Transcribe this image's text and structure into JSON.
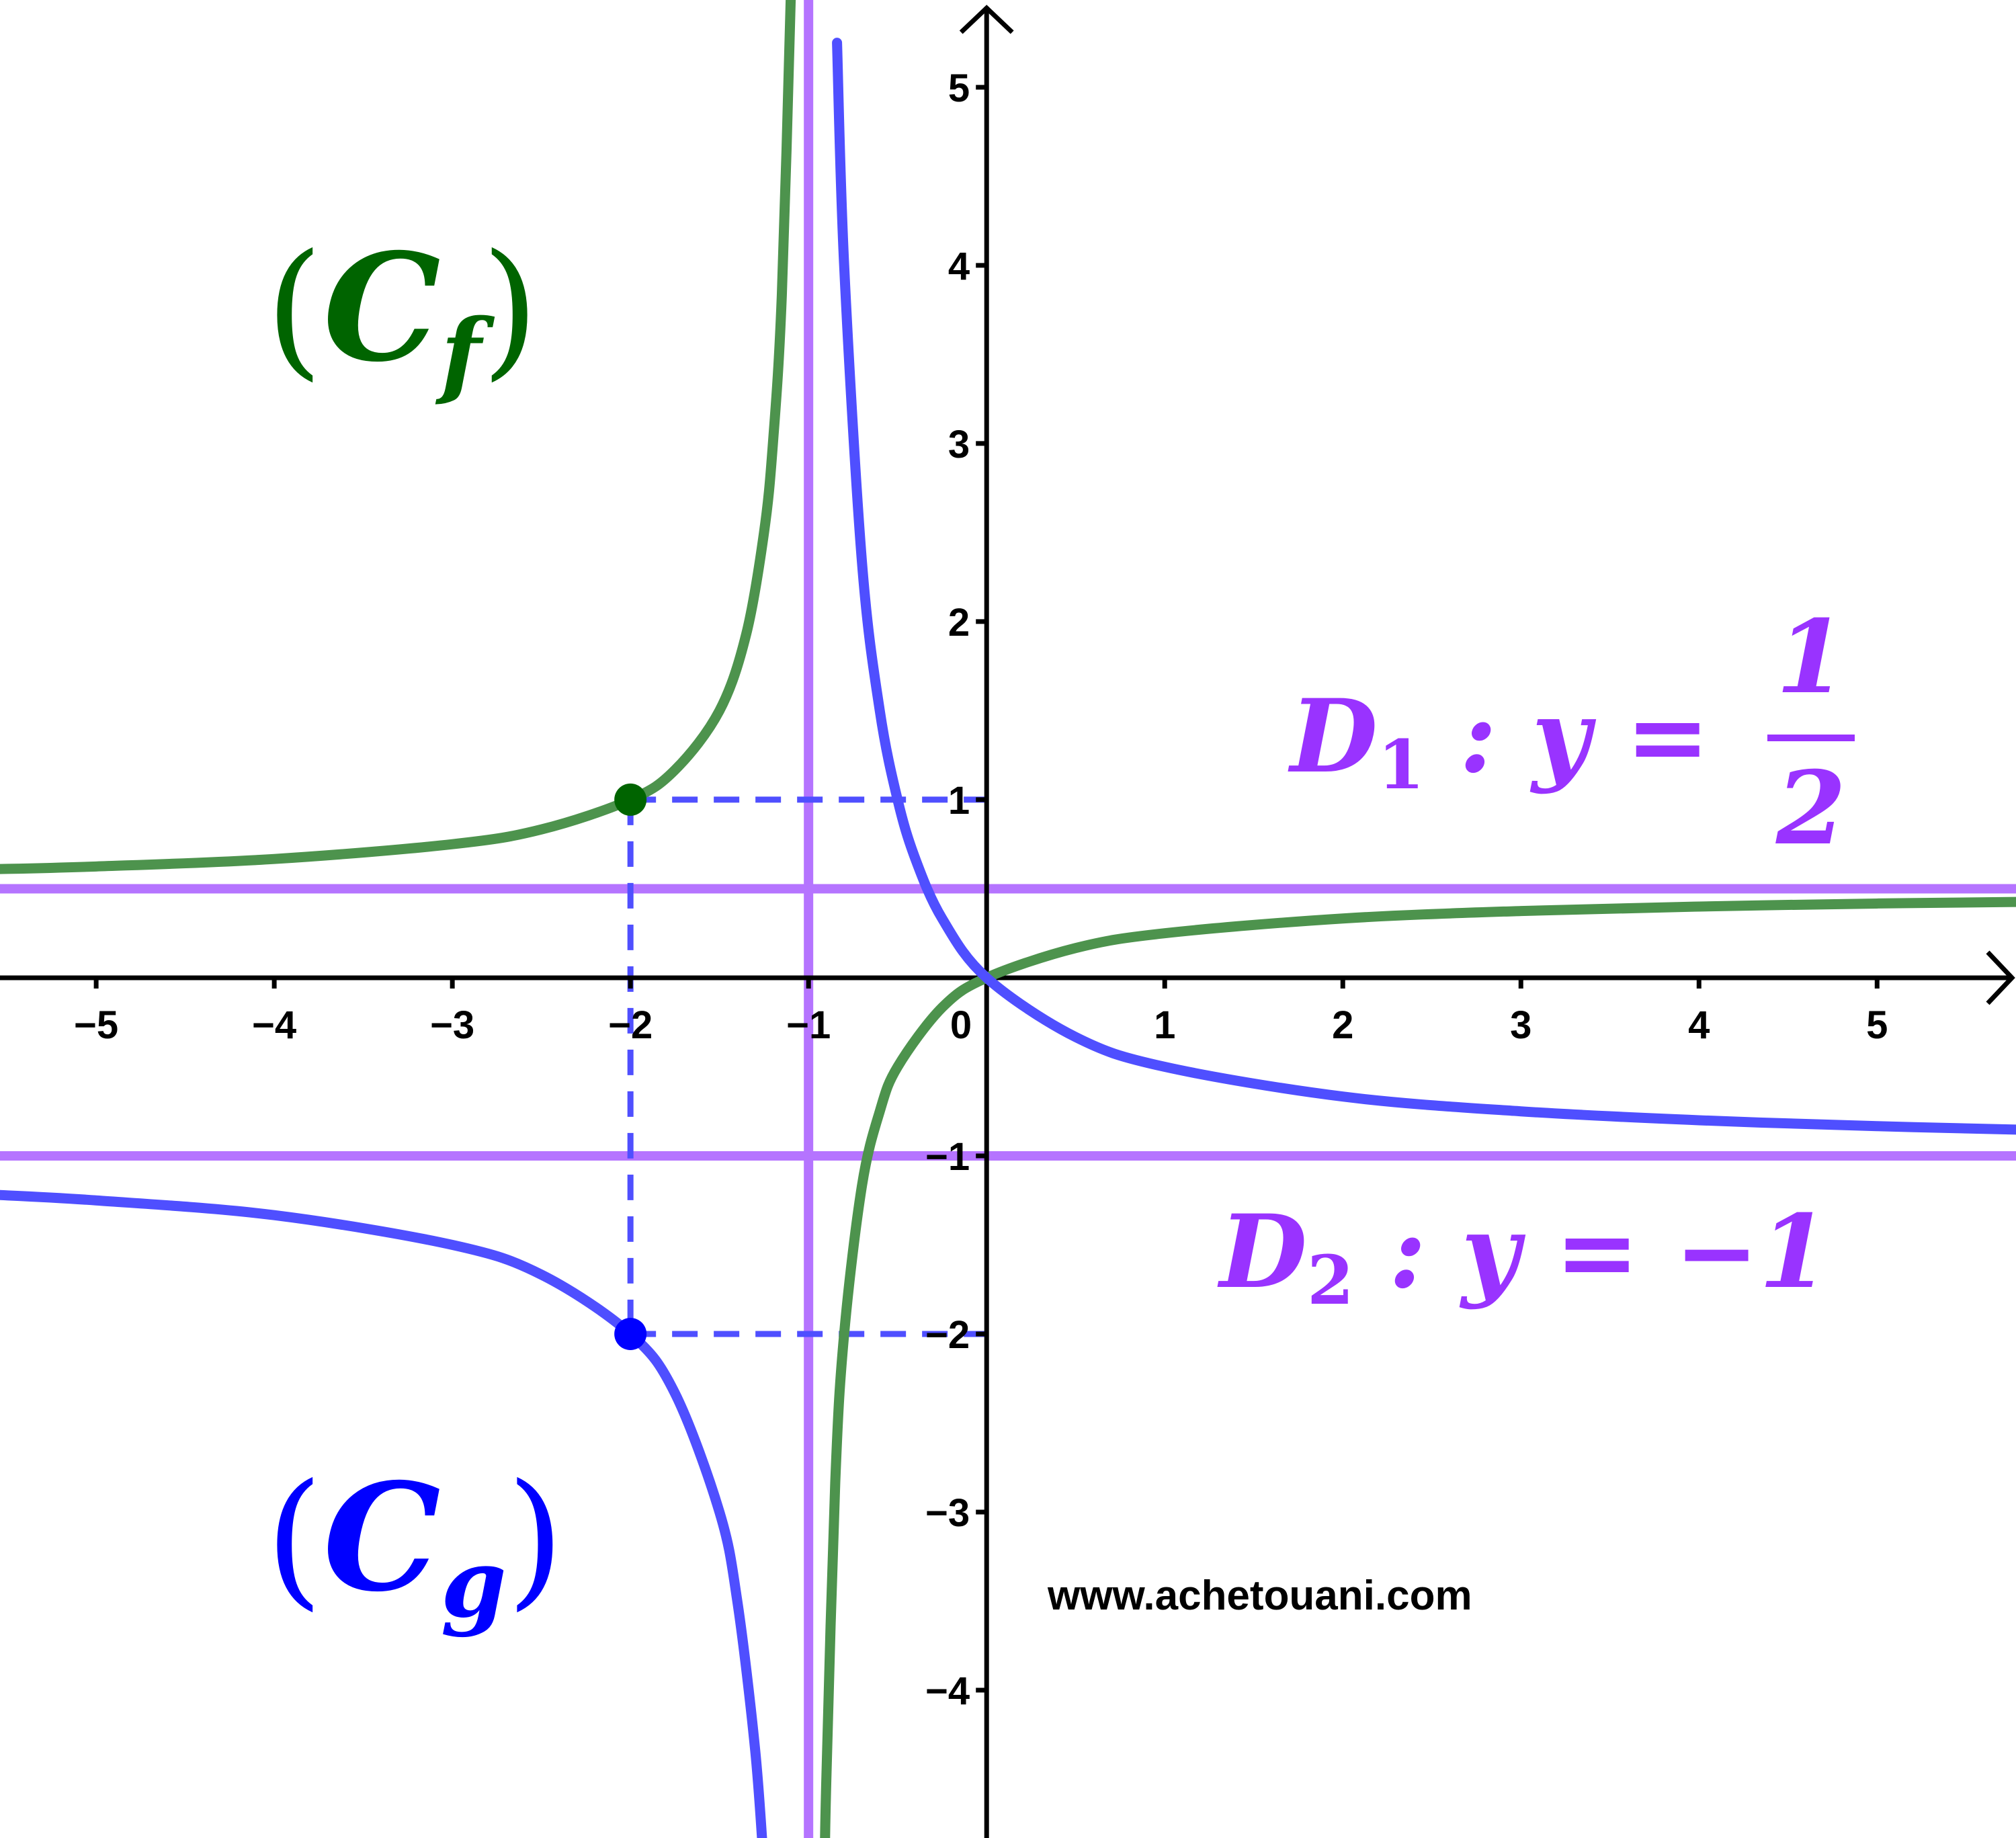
{
  "chart_data": {
    "type": "line",
    "title": "",
    "xlabel": "",
    "ylabel": "",
    "xlim": [
      -5.54,
      5.78
    ],
    "ylim": [
      -4.83,
      5.49
    ],
    "grid": false,
    "x_ticks": [
      "−5",
      "−4",
      "−3",
      "−2",
      "−1",
      "1",
      "2",
      "3",
      "4",
      "5"
    ],
    "x_tick_values": [
      -5,
      -4,
      -3,
      -2,
      -1,
      1,
      2,
      3,
      4,
      5
    ],
    "y_ticks": [
      "5",
      "4",
      "3",
      "2",
      "1",
      "−1",
      "−2",
      "−3",
      "−4"
    ],
    "y_tick_values": [
      5,
      4,
      3,
      2,
      1,
      -1,
      -2,
      -3,
      -4
    ],
    "origin_label": "0",
    "colors": {
      "f_curve": "#4d934d",
      "g_curve": "#4f4fff",
      "asymptote": "#b574ff",
      "f_point": "#006400",
      "g_point": "#0000ff",
      "f_label": "#006400",
      "g_label": "#0000ff",
      "d_label": "#9933ff",
      "dashed": "#4f4fff",
      "axis": "#000000"
    },
    "series": [
      {
        "name": "(C_f)",
        "color": "#4d934d",
        "branches": [
          [
            [
              -5.6,
              0.609
            ],
            [
              -5,
              0.625
            ],
            [
              -4,
              0.667
            ],
            [
              -3,
              0.75
            ],
            [
              -2.5,
              0.833
            ],
            [
              -2,
              1
            ],
            [
              -1.75,
              1.167
            ],
            [
              -1.5,
              1.5
            ],
            [
              -1.35,
              1.929
            ],
            [
              -1.25,
              2.5
            ],
            [
              -1.2,
              3
            ],
            [
              -1.15,
              3.833
            ],
            [
              -1.1,
              5.5
            ],
            [
              -1.09,
              6.06
            ]
          ],
          [
            [
              -0.91,
              -5.06
            ],
            [
              -0.9,
              -4.5
            ],
            [
              -0.85,
              -2.833
            ],
            [
              -0.8,
              -2
            ],
            [
              -0.7,
              -1.167
            ],
            [
              -0.6,
              -0.75
            ],
            [
              -0.5,
              -0.5
            ],
            [
              -0.25,
              -0.167
            ],
            [
              0,
              0
            ],
            [
              0.5,
              0.167
            ],
            [
              1,
              0.25
            ],
            [
              2,
              0.333
            ],
            [
              3,
              0.375
            ],
            [
              4,
              0.4
            ],
            [
              5,
              0.417
            ],
            [
              5.8,
              0.426
            ]
          ]
        ]
      },
      {
        "name": "(C_g)",
        "color": "#4f4fff",
        "branches": [
          [
            [
              -5.6,
              -1.217
            ],
            [
              -5,
              -1.25
            ],
            [
              -4,
              -1.333
            ],
            [
              -3,
              -1.5
            ],
            [
              -2.5,
              -1.667
            ],
            [
              -2,
              -2
            ],
            [
              -1.75,
              -2.333
            ],
            [
              -1.5,
              -3
            ],
            [
              -1.4,
              -3.5
            ],
            [
              -1.3,
              -4.333
            ],
            [
              -1.25,
              -5
            ]
          ],
          [
            [
              -0.84,
              5.25
            ],
            [
              -0.8,
              4
            ],
            [
              -0.7,
              2.333
            ],
            [
              -0.6,
              1.5
            ],
            [
              -0.5,
              1
            ],
            [
              -0.4,
              0.667
            ],
            [
              -0.25,
              0.333
            ],
            [
              0,
              0
            ],
            [
              0.5,
              -0.333
            ],
            [
              1,
              -0.5
            ],
            [
              2,
              -0.667
            ],
            [
              3,
              -0.75
            ],
            [
              4,
              -0.8
            ],
            [
              5,
              -0.833
            ],
            [
              5.8,
              -0.853
            ]
          ]
        ]
      }
    ],
    "asymptotes": {
      "vertical_x": -1,
      "horizontal_y": [
        0.5,
        -1
      ]
    },
    "points": [
      {
        "x": -2,
        "y": 1,
        "color": "#006400"
      },
      {
        "x": -2,
        "y": -2,
        "color": "#0000ff"
      }
    ],
    "labels": {
      "cf": {
        "open": "(",
        "main": "C",
        "sub": "f",
        "close": ")"
      },
      "cg": {
        "open": "(",
        "main": "C",
        "sub": "g",
        "close": ")"
      },
      "d1": {
        "main": "D",
        "sub": "1",
        "rest": " : y = ",
        "num": "1",
        "den": "2"
      },
      "d2": {
        "main": "D",
        "sub": "2",
        "rest": " : y = −1"
      }
    },
    "watermark": "www.achetouani.com"
  }
}
